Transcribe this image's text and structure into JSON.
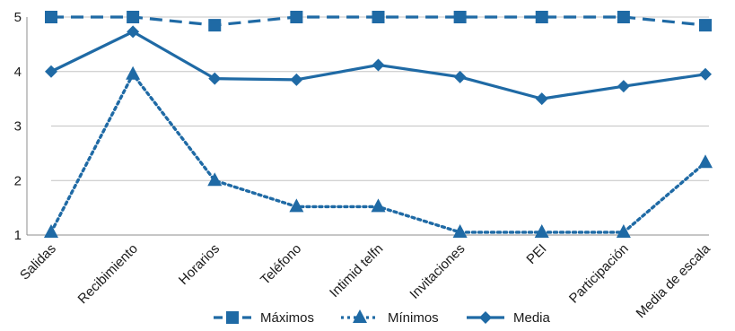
{
  "chart_data": {
    "type": "line",
    "title": "",
    "xlabel": "",
    "ylabel": "",
    "ylim": [
      1,
      5
    ],
    "yticks": [
      1,
      2,
      3,
      4,
      5
    ],
    "grid": "horizontal",
    "legend": "bottom",
    "categories": [
      "Salidas",
      "Recibimiento",
      "Horarios",
      "Teléfono",
      "Intimid telfn",
      "Invitaciones",
      "PEI",
      "Participación",
      "Media de escala"
    ],
    "series": [
      {
        "name": "Máximos",
        "style": "dashed",
        "marker": "square",
        "color": "#1f6aa5",
        "values": [
          5.0,
          5.0,
          4.85,
          5.0,
          5.0,
          5.0,
          5.0,
          5.0,
          4.85
        ]
      },
      {
        "name": "Mínimos",
        "style": "dotted",
        "marker": "triangle",
        "color": "#1f6aa5",
        "values": [
          1.05,
          3.95,
          2.0,
          1.52,
          1.52,
          1.05,
          1.05,
          1.05,
          2.33
        ]
      },
      {
        "name": "Media",
        "style": "solid",
        "marker": "diamond",
        "color": "#1f6aa5",
        "values": [
          4.0,
          4.73,
          3.87,
          3.85,
          4.12,
          3.9,
          3.5,
          3.73,
          3.95
        ]
      }
    ]
  }
}
